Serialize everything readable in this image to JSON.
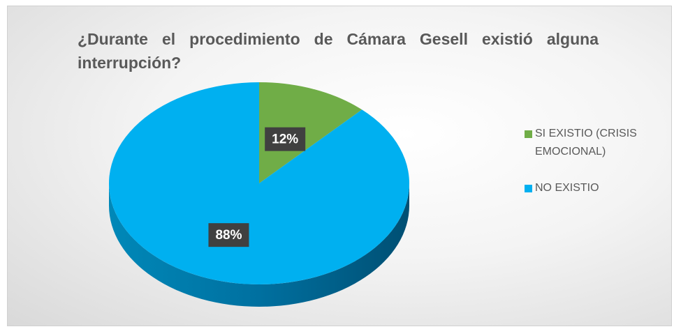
{
  "chart_data": {
    "type": "pie",
    "title": "¿Durante el procedimiento de Cámara Gesell existió alguna interrupción?",
    "categories": [
      "SI EXISTIO (CRISIS EMOCIONAL)",
      "NO EXISTIO"
    ],
    "values": [
      12,
      88
    ],
    "value_labels": [
      "12%",
      "88%"
    ],
    "colors": [
      "#70ad47",
      "#00b0f0"
    ],
    "legend": "right"
  }
}
